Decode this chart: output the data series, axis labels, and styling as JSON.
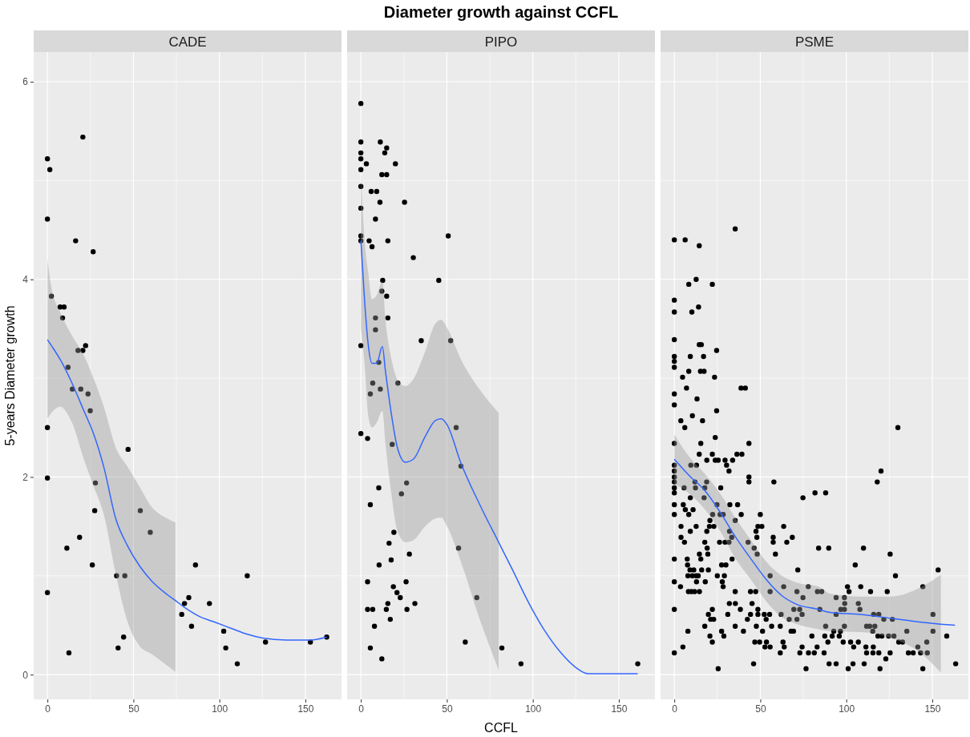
{
  "chart_data": [
    {
      "type": "scatter",
      "subtitle": "CADE",
      "ylabel": "5-years Diameter growth",
      "xlim": [
        -8,
        171
      ],
      "ylim": [
        -0.25,
        6.3
      ],
      "xticks": [
        0,
        50,
        100,
        150
      ],
      "yticks": [
        0,
        2,
        4,
        6
      ],
      "grid": true,
      "series": [
        {
          "type": "scatter",
          "color": "#000000",
          "marker": "circle",
          "x": [
            0,
            1.4,
            20.6,
            0,
            16.4,
            26.6,
            2.3,
            7.4,
            9.7,
            8.8,
            22.2,
            17.8,
            20.6,
            12.0,
            14.5,
            19.4,
            23.6,
            24.9,
            0,
            46.9,
            0,
            27.9,
            27.5,
            54.0,
            59.8,
            18.7,
            11.3,
            26.1,
            86.1,
            40.2,
            45.0,
            116.2,
            0,
            82.2,
            79.7,
            94.2,
            78.1,
            83.8,
            102.5,
            44.3,
            41.1,
            103.7,
            126.8,
            152.9,
            162.4,
            12.5,
            110.4
          ],
          "values": [
            5.22,
            5.11,
            5.44,
            4.61,
            4.39,
            4.28,
            3.83,
            3.72,
            3.72,
            3.61,
            3.33,
            3.28,
            3.28,
            3.11,
            2.89,
            2.89,
            2.84,
            2.67,
            2.5,
            2.28,
            1.99,
            1.94,
            1.66,
            1.66,
            1.44,
            1.39,
            1.28,
            1.11,
            1.11,
            1.0,
            1.0,
            1.0,
            0.83,
            0.78,
            0.72,
            0.72,
            0.61,
            0.49,
            0.44,
            0.38,
            0.27,
            0.27,
            0.33,
            0.33,
            0.38,
            0.22,
            0.11
          ]
        },
        {
          "type": "line",
          "color": "#3366ff",
          "x": [
            0,
            2.3,
            7.4,
            14.3,
            21.2,
            27,
            32.8,
            39.7,
            46.7,
            53.6,
            60.5,
            69.7,
            74.4,
            79,
            88.2,
            97.5,
            106.7,
            115.9,
            125.2,
            139,
            152.9,
            162.4
          ],
          "values": [
            3.39,
            3.33,
            3.19,
            2.95,
            2.67,
            2.43,
            2.1,
            1.58,
            1.3,
            1.1,
            0.95,
            0.81,
            0.75,
            0.69,
            0.59,
            0.53,
            0.47,
            0.41,
            0.37,
            0.35,
            0.35,
            0.38
          ],
          "upper": [
            4.21,
            3.92,
            3.67,
            3.43,
            3.23,
            2.99,
            2.71,
            2.3,
            2.1,
            1.9,
            1.7,
            1.58,
            1.54,
            null,
            null,
            null,
            null,
            null,
            null,
            null,
            null,
            null
          ],
          "lower": [
            2.59,
            2.65,
            2.71,
            2.55,
            2.18,
            1.9,
            1.62,
            1.02,
            0.53,
            0.29,
            0.21,
            0.09,
            0.03,
            null,
            null,
            null,
            null,
            null,
            null,
            null,
            null,
            null
          ]
        }
      ]
    },
    {
      "type": "scatter",
      "title": "Diameter growth against CCFL",
      "subtitle": "PIPO",
      "xlabel": "CCFL",
      "xlim": [
        -8,
        171
      ],
      "ylim": [
        -0.25,
        6.3
      ],
      "xticks": [
        0,
        50,
        100,
        150
      ],
      "yticks": [
        0,
        2,
        4,
        6
      ],
      "grid": true,
      "tick_labels": "x",
      "series": [
        {
          "type": "scatter",
          "color": "#000000",
          "marker": "circle",
          "x": [
            0,
            0,
            0,
            0,
            0,
            0,
            0,
            0,
            0,
            3.2,
            11.3,
            15.0,
            13.9,
            20.1,
            12.2,
            15.0,
            6.0,
            9.2,
            11.1,
            25.4,
            8.5,
            50.8,
            4.8,
            6.5,
            15.7,
            30.5,
            12.7,
            45.3,
            12.2,
            15.0,
            8.5,
            15.7,
            8.5,
            35.1,
            52.2,
            0,
            10.4,
            6.9,
            21.5,
            11.3,
            5.5,
            55.4,
            0,
            3.9,
            18.2,
            58.2,
            26.6,
            23.6,
            10.4,
            5.5,
            19.2,
            16.4,
            17.6,
            28.2,
            10.6,
            56.8,
            3.9,
            26.3,
            18.9,
            21,
            22.9,
            67.4,
            3.9,
            6.9,
            14.8,
            26.8,
            15.7,
            31.4,
            17.1,
            7.9,
            5.5,
            60.7,
            12.2,
            82,
            93.1,
            161
          ],
          "values": [
            5.78,
            5.39,
            5.28,
            5.22,
            5.11,
            4.94,
            4.72,
            4.44,
            4.39,
            5.17,
            5.39,
            5.33,
            5.28,
            5.17,
            5.06,
            5.06,
            4.89,
            4.89,
            4.78,
            4.78,
            4.61,
            4.44,
            4.39,
            4.33,
            4.39,
            4.22,
            3.99,
            3.99,
            3.88,
            3.83,
            3.61,
            3.61,
            3.49,
            3.38,
            3.38,
            3.33,
            3.16,
            2.95,
            2.95,
            2.89,
            2.84,
            2.5,
            2.44,
            2.39,
            2.33,
            2.11,
            1.94,
            1.83,
            1.89,
            1.72,
            1.44,
            1.33,
            1.16,
            1.22,
            1.11,
            1.28,
            0.94,
            0.94,
            0.89,
            0.83,
            0.78,
            0.78,
            0.66,
            0.66,
            0.66,
            0.66,
            0.72,
            0.72,
            0.56,
            0.49,
            0.27,
            0.33,
            0.16,
            0.27,
            0.11,
            0.11
          ]
        },
        {
          "type": "line",
          "color": "#3366ff",
          "x": [
            0,
            2.3,
            4.2,
            6.5,
            9.2,
            12.5,
            14.3,
            17.8,
            21.2,
            25.9,
            30.5,
            37.4,
            43.2,
            46.7,
            50.1,
            58.2,
            69.7,
            80.1,
            88.2,
            97.5,
            106.7,
            115.9,
            125.2,
            132.1,
            161
          ],
          "values": [
            4.39,
            3.75,
            3.35,
            3.15,
            3.15,
            3.32,
            3.07,
            2.63,
            2.3,
            2.15,
            2.18,
            2.41,
            2.57,
            2.59,
            2.53,
            2.14,
            1.7,
            1.34,
            1.06,
            0.73,
            0.45,
            0.23,
            0.07,
            0.01,
            0.01
          ],
          "upper": [
            5.08,
            4.36,
            4.08,
            3.8,
            3.84,
            3.98,
            3.59,
            3.19,
            2.99,
            2.92,
            2.99,
            3.27,
            3.55,
            3.59,
            3.51,
            3.19,
            2.87,
            2.65,
            null,
            null,
            null,
            null,
            null,
            null,
            null
          ],
          "lower": [
            3.51,
            3.11,
            2.63,
            2.5,
            2.55,
            2.67,
            2.34,
            1.82,
            1.46,
            1.34,
            1.36,
            1.5,
            1.58,
            1.59,
            1.5,
            1.14,
            0.53,
            0.05,
            null,
            null,
            null,
            null,
            null,
            null,
            null
          ]
        }
      ]
    },
    {
      "type": "scatter",
      "subtitle": "PSME",
      "xlim": [
        -8,
        171
      ],
      "ylim": [
        -0.25,
        6.3
      ],
      "xticks": [
        0,
        50,
        100,
        150
      ],
      "yticks": [
        0,
        2,
        4,
        6
      ],
      "grid": true,
      "tick_labels": "x",
      "series": [
        {
          "type": "scatter",
          "color": "#000000",
          "marker": "circle",
          "x": [
            0,
            6.3,
            14.5,
            35.4,
            12.7,
            8.4,
            22.1,
            0,
            0,
            10.2,
            14.1,
            0,
            14.5,
            15.7,
            24.6,
            9.3,
            17.0,
            0,
            0,
            0,
            8.4,
            15.2,
            17.3,
            4.8,
            23.4,
            7.1,
            38.8,
            41.3,
            0,
            13.2,
            0,
            24.6,
            10.5,
            3.8,
            16.4,
            6.1,
            23.8,
            0,
            15.4,
            43.4,
            14.5,
            22.1,
            36.4,
            39.3,
            18.9,
            23.8,
            25.5,
            29.5,
            33.9,
            12.9,
            30.4,
            31.8,
            0,
            0,
            0,
            0,
            0,
            0,
            9.6,
            43.4,
            43.4,
            57.9,
            12.0,
            18.8,
            5.7,
            12.3,
            17.7,
            27.0,
            9.3,
            17.3,
            0,
            5.2,
            24.8,
            32.3,
            36.8,
            6.4,
            10.9,
            0,
            8.4,
            22.3,
            26.6,
            28.4,
            38.9,
            50,
            20.7,
            35.4,
            3.9,
            12.7,
            20.4,
            23.0,
            48.6,
            50.9,
            63.6,
            9.3,
            18.9,
            32.1,
            47.5,
            3.9,
            33.4,
            48.0,
            57.5,
            68.6,
            5.9,
            17.7,
            26.3,
            29.5,
            31.8,
            42.9,
            57.5,
            65.4,
            19.1,
            46.4,
            14.6,
            19.5,
            48.2,
            58.8,
            15.4,
            0,
            33.6,
            7.5,
            7.7,
            27.5,
            30.0,
            9.1,
            11.3,
            15.9,
            19.8,
            71.8,
            7.9,
            10.5,
            12.7,
            13.9,
            25.0,
            29.1,
            55.7,
            12.9,
            18.0,
            27.9,
            0,
            3.6,
            28.4,
            63.6,
            77.9,
            8.2,
            10.0,
            11.8,
            14.6,
            35.4,
            44.3,
            47.3,
            55.7,
            71.3,
            83.2,
            74.8,
            32,
            35.5,
            45.2,
            22.1,
            0,
            38.4,
            48.6,
            69.5,
            72.9,
            19.8,
            31.1,
            44.3,
            48.6,
            52.3,
            55.4,
            62.1,
            74.3,
            21.1,
            22.9,
            42.5,
            53.4,
            66.8,
            71.3,
            17.7,
            35.4,
            47.7,
            56.6,
            61.6,
            7.9,
            27.5,
            40.2,
            67.9,
            69.3,
            20.7,
            28.8,
            51.3,
            80.0,
            22.1,
            46.8,
            49.6,
            53.6,
            63.2,
            5.0,
            52.7,
            55.7,
            63.9,
            74.3,
            83.0,
            0,
            61.6,
            73.0,
            78.0,
            81.4,
            46.1,
            25.5,
            76.6,
            130,
            120.2,
            118.0,
            88.0,
            81.8,
            74.8,
            83.9,
            89.8,
            110,
            125.5,
            105.2,
            128.6,
            153.4,
            100.7,
            108.4,
            144.5,
            85.7,
            101.6,
            114.1,
            123.8,
            94.1,
            98.9,
            107.0,
            99.1,
            98.9,
            96.8,
            107.9,
            84.6,
            94.1,
            115.9,
            118.9,
            150.4,
            121.8,
            126.8,
            88.0,
            98.9,
            111.8,
            113.6,
            116.6,
            92.7,
            96.6,
            115.4,
            135.2,
            150.4,
            87.5,
            91.8,
            95.9,
            118.4,
            120.7,
            124.6,
            127.7,
            158.4,
            89.3,
            98.2,
            102.5,
            107.0,
            130.5,
            132.7,
            146.8,
            104.3,
            111.4,
            115.7,
            141.6,
            87.1,
            111.8,
            115.5,
            118.9,
            125.5,
            136.1,
            138.9,
            143.2,
            147.1,
            123.0,
            90.0,
            94.1,
            103.9,
            110.4,
            163.6,
            101.1,
            119.6,
            144.5
          ],
          "values": [
            4.4,
            4.4,
            4.34,
            4.51,
            4.0,
            3.95,
            3.95,
            3.79,
            3.67,
            3.67,
            3.72,
            3.39,
            3.34,
            3.34,
            3.28,
            3.22,
            3.22,
            3.22,
            3.17,
            3.11,
            3.07,
            3.07,
            3.07,
            3.01,
            3.01,
            2.9,
            2.9,
            2.9,
            2.84,
            2.79,
            2.73,
            2.67,
            2.62,
            2.57,
            2.57,
            2.5,
            2.4,
            2.34,
            2.34,
            2.34,
            2.23,
            2.23,
            2.23,
            2.23,
            2.17,
            2.17,
            2.17,
            2.17,
            2.17,
            2.12,
            2.12,
            2.06,
            2.12,
            2.06,
            2.0,
            1.95,
            1.89,
            1.84,
            2.12,
            2.0,
            1.95,
            1.95,
            1.95,
            1.95,
            1.89,
            1.89,
            1.89,
            1.89,
            1.79,
            1.79,
            1.72,
            1.72,
            1.72,
            1.72,
            1.72,
            1.67,
            1.67,
            1.62,
            1.62,
            1.62,
            1.62,
            1.62,
            1.62,
            1.62,
            1.56,
            1.56,
            1.5,
            1.5,
            1.5,
            1.5,
            1.5,
            1.5,
            1.5,
            1.45,
            1.45,
            1.45,
            1.45,
            1.39,
            1.39,
            1.39,
            1.39,
            1.39,
            1.34,
            1.34,
            1.34,
            1.34,
            1.34,
            1.34,
            1.34,
            1.34,
            1.28,
            1.28,
            1.22,
            1.22,
            1.22,
            1.22,
            1.17,
            1.17,
            1.17,
            1.17,
            1.11,
            1.11,
            1.11,
            1.06,
            1.06,
            1.06,
            1.06,
            1.06,
            1.0,
            1.0,
            1.0,
            1.0,
            1.0,
            1.0,
            1.0,
            0.94,
            0.94,
            0.94,
            0.94,
            0.89,
            0.89,
            0.89,
            0.89,
            0.84,
            0.84,
            0.84,
            0.84,
            0.84,
            0.84,
            0.84,
            0.84,
            0.84,
            0.84,
            0.78,
            0.72,
            0.72,
            0.72,
            0.66,
            0.66,
            0.66,
            0.66,
            0.66,
            0.66,
            0.61,
            0.61,
            0.61,
            0.61,
            0.61,
            0.61,
            0.61,
            0.61,
            0.56,
            0.56,
            0.56,
            0.56,
            0.56,
            0.56,
            0.49,
            0.49,
            0.49,
            0.49,
            0.49,
            0.44,
            0.44,
            0.44,
            0.44,
            0.44,
            0.39,
            0.39,
            0.44,
            0.39,
            0.33,
            0.33,
            0.33,
            0.33,
            0.33,
            0.28,
            0.28,
            0.28,
            0.28,
            0.28,
            0.28,
            0.22,
            0.22,
            0.22,
            0.22,
            0.22,
            0.11,
            0.06,
            0.06,
            2.5,
            2.06,
            1.95,
            1.84,
            1.84,
            1.79,
            1.28,
            1.28,
            1.28,
            1.22,
            1.11,
            1.0,
            1.06,
            0.89,
            0.89,
            0.89,
            0.84,
            0.84,
            0.84,
            0.84,
            0.78,
            0.78,
            0.72,
            0.72,
            0.66,
            0.66,
            0.66,
            0.66,
            0.61,
            0.61,
            0.61,
            0.61,
            0.56,
            0.56,
            0.49,
            0.49,
            0.49,
            0.49,
            0.49,
            0.44,
            0.44,
            0.44,
            0.44,
            0.44,
            0.39,
            0.39,
            0.39,
            0.39,
            0.39,
            0.39,
            0.39,
            0.39,
            0.33,
            0.33,
            0.33,
            0.33,
            0.33,
            0.33,
            0.33,
            0.28,
            0.28,
            0.28,
            0.28,
            0.22,
            0.22,
            0.22,
            0.22,
            0.22,
            0.22,
            0.22,
            0.22,
            0.22,
            0.16,
            0.11,
            0.11,
            0.11,
            0.11,
            0.11,
            0.06,
            0.06,
            0.06
          ]
        },
        {
          "type": "line",
          "color": "#3366ff",
          "x": [
            0,
            8.9,
            17.9,
            26.8,
            35.7,
            44.6,
            53.6,
            62.5,
            71.4,
            83.9,
            90.4,
            108.2,
            126.1,
            143.9,
            155,
            163.2
          ],
          "values": [
            2.18,
            2.01,
            1.86,
            1.64,
            1.39,
            1.17,
            0.96,
            0.8,
            0.71,
            0.66,
            0.63,
            0.61,
            0.57,
            0.53,
            0.51,
            0.5
          ],
          "upper": [
            2.43,
            2.2,
            2.03,
            1.83,
            1.58,
            1.36,
            1.14,
            1.0,
            0.93,
            0.89,
            0.82,
            0.79,
            0.79,
            0.89,
            1.01,
            null
          ],
          "lower": [
            1.93,
            1.83,
            1.67,
            1.45,
            1.17,
            0.96,
            0.74,
            0.58,
            0.51,
            0.46,
            0.44,
            0.43,
            0.37,
            0.21,
            0.02,
            null
          ]
        }
      ]
    }
  ]
}
